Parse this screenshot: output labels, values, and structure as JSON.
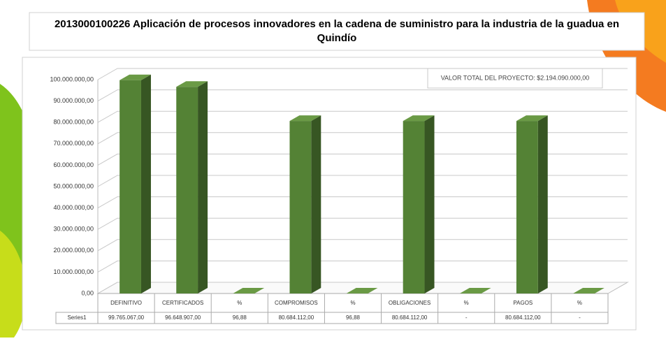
{
  "chart_data": {
    "type": "bar3d",
    "title": "2013000100226  Aplicación de procesos innovadores en la cadena de suministro para la industria de la guadua en Quindío",
    "annotation": "VALOR TOTAL DEL PROYECTO: $2.194.090.000,00",
    "categories": [
      "DEFINITIVO",
      "CERTIFICADOS",
      "%",
      "COMPROMISOS",
      "%",
      "OBLIGACIONES",
      "%",
      "PAGOS",
      "%"
    ],
    "series": [
      {
        "name": "Series1",
        "color": "#548235",
        "values": [
          99765067,
          96648907,
          96.88,
          80684112,
          96.88,
          80684112,
          0,
          80684112,
          0
        ],
        "value_labels": [
          "99.765.067,00",
          "96.648.907,00",
          "96,88",
          "80.684.112,00",
          "96,88",
          "80.684.112,00",
          "-",
          "80.684.112,00",
          "-"
        ]
      }
    ],
    "ylim": [
      0,
      100000000
    ],
    "yticks": [
      {
        "value": 0,
        "label": "0,00"
      },
      {
        "value": 10000000,
        "label": "10.000.000,00"
      },
      {
        "value": 20000000,
        "label": "20.000.000,00"
      },
      {
        "value": 30000000,
        "label": "30.000.000,00"
      },
      {
        "value": 40000000,
        "label": "40.000.000,00"
      },
      {
        "value": 50000000,
        "label": "50.000.000,00"
      },
      {
        "value": 60000000,
        "label": "60.000.000,00"
      },
      {
        "value": 70000000,
        "label": "70.000.000,00"
      },
      {
        "value": 80000000,
        "label": "80.000.000,00"
      },
      {
        "value": 90000000,
        "label": "90.000.000,00"
      },
      {
        "value": 100000000,
        "label": "100.000.000,00"
      }
    ],
    "grid": true
  }
}
